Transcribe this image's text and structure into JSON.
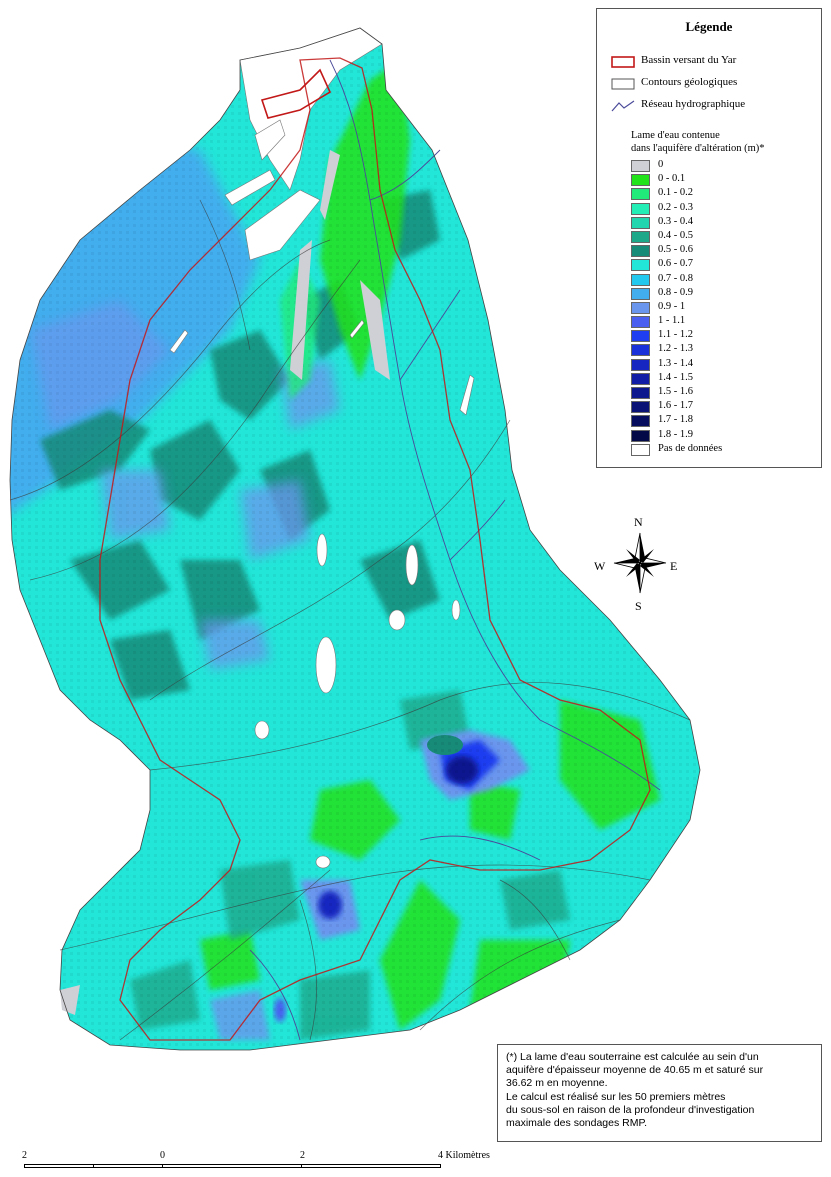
{
  "legend": {
    "title": "Légende",
    "line_items": [
      {
        "label": "Bassin versant du Yar",
        "symbol": "red-rect"
      },
      {
        "label": "Contours géologiques",
        "symbol": "grey-rect"
      },
      {
        "label": "Réseau hydrographique",
        "symbol": "river-line"
      }
    ],
    "subtitle_line1": "Lame d'eau contenue",
    "subtitle_line2": "dans l'aquifère d'altération (m)*",
    "classes": [
      {
        "label": "0",
        "color": "#cfcfd6"
      },
      {
        "label": "0 - 0.1",
        "color": "#22e21a"
      },
      {
        "label": "0.1 - 0.2",
        "color": "#22ea7a"
      },
      {
        "label": "0.2 - 0.3",
        "color": "#22eeb6"
      },
      {
        "label": "0.3 - 0.4",
        "color": "#22d6b0"
      },
      {
        "label": "0.4 - 0.5",
        "color": "#1ea88a"
      },
      {
        "label": "0.5 - 0.6",
        "color": "#178a78"
      },
      {
        "label": "0.6 - 0.7",
        "color": "#22e6d8"
      },
      {
        "label": "0.7 - 0.8",
        "color": "#22c8ee"
      },
      {
        "label": "0.8 - 0.9",
        "color": "#42aeee"
      },
      {
        "label": "0.9 - 1",
        "color": "#6a96ee"
      },
      {
        "label": "1 - 1.1",
        "color": "#4a5ef0"
      },
      {
        "label": "1.1 - 1.2",
        "color": "#1e3ef0"
      },
      {
        "label": "1.2 - 1.3",
        "color": "#1a30d8"
      },
      {
        "label": "1.3 - 1.4",
        "color": "#1626c0"
      },
      {
        "label": "1.4 - 1.5",
        "color": "#121ea6"
      },
      {
        "label": "1.5 - 1.6",
        "color": "#0e188e"
      },
      {
        "label": "1.6 - 1.7",
        "color": "#0a1276"
      },
      {
        "label": "1.7 - 1.8",
        "color": "#060c5e"
      },
      {
        "label": "1.8 - 1.9",
        "color": "#030846"
      },
      {
        "label": "Pas de données",
        "color": "#ffffff"
      }
    ]
  },
  "compass": {
    "n": "N",
    "s": "S",
    "e": "E",
    "w": "W"
  },
  "note": {
    "lines": [
      "(*) La lame d'eau souterraine est calculée au sein d'un",
      "aquifère d'épaisseur moyenne de 40.65 m et saturé sur",
      "36.62 m en moyenne.",
      "Le calcul est réalisé sur les 50 premiers mètres",
      "du sous-sol en raison de la profondeur d'investigation",
      " maximale des sondages RMP."
    ]
  },
  "scale": {
    "labels": [
      "2",
      "0",
      "2",
      "4 Kilomètres"
    ]
  }
}
